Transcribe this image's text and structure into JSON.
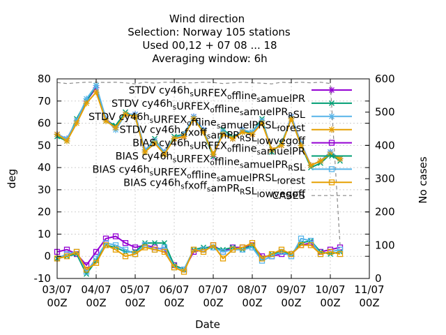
{
  "chart_data": {
    "type": "line",
    "title_lines": [
      "Wind direction",
      "Selection: Norway    105 stations",
      "Used  00,12  + 07 08 ... 18",
      "Averaging window:  6h"
    ],
    "xlabel": "Date",
    "ylabel": "deg",
    "y2label": "No cases",
    "x_ticks": [
      "03/07\n00Z",
      "04/07\n00Z",
      "05/07\n00Z",
      "06/07\n00Z",
      "07/07\n00Z",
      "08/07\n00Z",
      "09/07\n00Z",
      "10/07\n00Z",
      "11/07\n00Z"
    ],
    "x_tick_lines": [
      [
        "03/07",
        "00Z"
      ],
      [
        "04/07",
        "00Z"
      ],
      [
        "05/07",
        "00Z"
      ],
      [
        "06/07",
        "00Z"
      ],
      [
        "07/07",
        "00Z"
      ],
      [
        "08/07",
        "00Z"
      ],
      [
        "09/07",
        "00Z"
      ],
      [
        "10/07",
        "00Z"
      ],
      [
        "11/07",
        "00Z"
      ]
    ],
    "x_range_days": [
      0,
      8
    ],
    "ylim": [
      -10,
      80
    ],
    "y_ticks": [
      "-10",
      "0",
      "10",
      "20",
      "30",
      "40",
      "50",
      "60",
      "70",
      "80"
    ],
    "y2lim": [
      0,
      600
    ],
    "y2_ticks": [
      "0",
      "100",
      "200",
      "300",
      "400",
      "500",
      "600"
    ],
    "grid": true,
    "legend_position": "top-right",
    "x": [
      0,
      0.25,
      0.5,
      0.75,
      1.0,
      1.25,
      1.5,
      1.75,
      2.0,
      2.25,
      2.5,
      2.75,
      3.0,
      3.25,
      3.5,
      3.75,
      4.0,
      4.25,
      4.5,
      4.75,
      5.0,
      5.25,
      5.5,
      5.75,
      6.0,
      6.25,
      6.5,
      6.75,
      7.0,
      7.25
    ],
    "series": [
      {
        "name": "STDV cy46h_sURFEX_offline_samuelPR",
        "legend_main": [
          "STDV cy46h",
          "URFEX",
          "ffline",
          "amuelPR"
        ],
        "legend_subs": [
          "s",
          "o",
          "s"
        ],
        "color": "#9400d3",
        "marker": "star",
        "axis": "y",
        "values": [
          55,
          53,
          61,
          70,
          76,
          62,
          58,
          64,
          64,
          48,
          52,
          47,
          53,
          54,
          63,
          57,
          45,
          56,
          53,
          57,
          55,
          61,
          48,
          50,
          63,
          51,
          41,
          43,
          47,
          44
        ]
      },
      {
        "name": "STDV cy46h_sURFEX_offline_samuelPR_RSL",
        "legend_main": [
          "STDV cy46h",
          "URFEX",
          "ffline",
          "amuelPR",
          "SL"
        ],
        "legend_subs": [
          "s",
          "o",
          "s",
          "R"
        ],
        "color": "#009e73",
        "marker": "x",
        "axis": "y",
        "values": [
          54,
          52,
          62,
          70,
          77,
          61,
          59,
          65,
          63,
          47,
          53,
          46,
          54,
          55,
          62,
          56,
          45,
          57,
          54,
          56,
          56,
          62,
          47,
          51,
          62,
          50,
          40,
          42,
          46,
          43
        ]
      },
      {
        "name": "STDV cy46h_sURFEX_offline_samuelPR_SL_forest",
        "legend_main": [
          "STDV cy46h",
          "URFEX",
          "ffline",
          "amuelPR",
          "SL",
          "orest"
        ],
        "legend_subs": [
          "s",
          "o",
          "s",
          "",
          "f"
        ],
        "color": "#56b4e9",
        "marker": "star",
        "axis": "y",
        "values": [
          55,
          53,
          61,
          71,
          77,
          62,
          57,
          64,
          64,
          48,
          52,
          47,
          53,
          55,
          63,
          57,
          46,
          56,
          53,
          57,
          56,
          61,
          48,
          50,
          63,
          51,
          41,
          43,
          47,
          44
        ]
      },
      {
        "name": "STDV cy46h_sfxoff_samPR_RSL_lowvegoff",
        "legend_main": [
          "STDV cy46h",
          "fxoff",
          "amPR",
          "SL",
          "owvegoff"
        ],
        "legend_subs": [
          "s",
          "s",
          "R",
          "l"
        ],
        "color": "#e69f00",
        "marker": "star",
        "axis": "y",
        "values": [
          55,
          52,
          60,
          69,
          74,
          61,
          58,
          64,
          63,
          47,
          51,
          46,
          53,
          54,
          62,
          56,
          46,
          55,
          53,
          56,
          55,
          60,
          48,
          50,
          62,
          50,
          41,
          43,
          46,
          44
        ]
      },
      {
        "name": "BIAS cy46h_sURFEX_offline_samuelPR",
        "legend_main": [
          "BIAS cy46h",
          "URFEX",
          "ffline",
          "amuelPR"
        ],
        "legend_subs": [
          "s",
          "o",
          "s"
        ],
        "color": "#9400d3",
        "marker": "square",
        "axis": "y",
        "values": [
          2,
          3,
          1,
          -4,
          2,
          8,
          9,
          6,
          4,
          5,
          4,
          3,
          -4,
          -6,
          2,
          3,
          5,
          2,
          4,
          4,
          5,
          0,
          0,
          1,
          1,
          5,
          6,
          2,
          3,
          4
        ]
      },
      {
        "name": "BIAS cy46h_sURFEX_offline_samuelPR_RSL",
        "legend_main": [
          "BIAS cy46h",
          "URFEX",
          "ffline",
          "amuelPR",
          "SL"
        ],
        "legend_subs": [
          "s",
          "o",
          "s",
          "R"
        ],
        "color": "#009e73",
        "marker": "x",
        "axis": "y",
        "values": [
          -1,
          0,
          1,
          -8,
          -2,
          5,
          4,
          2,
          2,
          6,
          6,
          6,
          -4,
          -6,
          3,
          4,
          4,
          3,
          4,
          3,
          5,
          -1,
          1,
          2,
          1,
          6,
          7,
          2,
          1,
          2
        ]
      },
      {
        "name": "BIAS cy46h_sURFEX_offline_samuelPR_SL_forest",
        "legend_main": [
          "BIAS cy46h",
          "URFEX",
          "ffline",
          "amuelPR",
          "SL",
          "orest"
        ],
        "legend_subs": [
          "s",
          "o",
          "s",
          "",
          "f"
        ],
        "color": "#56b4e9",
        "marker": "square",
        "axis": "y",
        "values": [
          -1,
          1,
          2,
          -7,
          -1,
          6,
          5,
          3,
          1,
          5,
          3,
          4,
          -5,
          -6,
          3,
          3,
          4,
          2,
          3,
          3,
          4,
          -2,
          0,
          2,
          0,
          8,
          7,
          1,
          2,
          3
        ]
      },
      {
        "name": "BIAS cy46h_sfxoff_samPR_RSL_lowvegoff",
        "legend_main": [
          "BIAS cy46h",
          "fxoff",
          "amPR",
          "SL",
          "owvegoff"
        ],
        "legend_subs": [
          "s",
          "s",
          "R",
          "l"
        ],
        "color": "#e69f00",
        "marker": "square",
        "axis": "y",
        "values": [
          -1,
          0,
          2,
          -6,
          -3,
          5,
          3,
          0,
          1,
          4,
          3,
          2,
          -5,
          -7,
          3,
          2,
          5,
          -1,
          3,
          4,
          6,
          -1,
          1,
          3,
          1,
          5,
          5,
          1,
          2,
          1
        ]
      },
      {
        "name": "CASES",
        "legend_main": [
          "CASES"
        ],
        "legend_subs": [],
        "color": "#888888",
        "marker": "none",
        "dashed": true,
        "axis": "y2",
        "values": [
          589,
          586,
          588,
          590,
          590,
          589,
          590,
          588,
          585,
          590,
          587,
          590,
          589,
          588,
          588,
          590,
          589,
          586,
          588,
          590,
          588,
          587,
          585,
          590,
          588,
          590,
          588,
          590,
          586,
          100
        ]
      }
    ]
  }
}
